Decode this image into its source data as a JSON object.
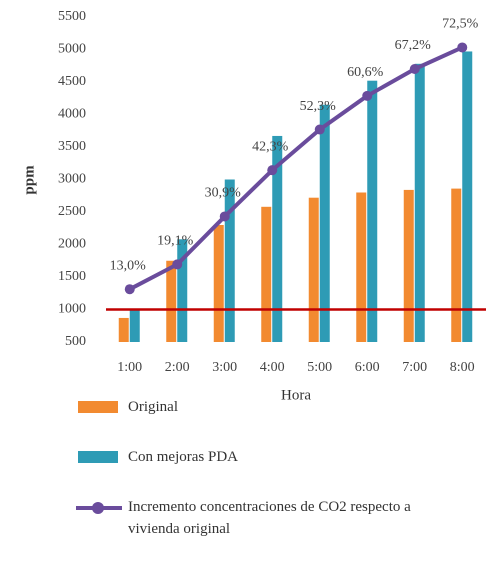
{
  "chart_data": {
    "type": "bar_line",
    "categories": [
      "1:00",
      "2:00",
      "3:00",
      "4:00",
      "5:00",
      "6:00",
      "7:00",
      "8:00"
    ],
    "xlabel": "Hora",
    "ylabel": "ppm",
    "ylim": [
      500,
      5500
    ],
    "yticks": [
      500,
      1000,
      1500,
      2000,
      2500,
      3000,
      3500,
      4000,
      4500,
      5000,
      5500
    ],
    "y2lim": [
      0,
      80
    ],
    "reference_line": {
      "value": 1000,
      "color": "#c00000"
    },
    "series": [
      {
        "name": "Original",
        "type": "bar",
        "color": "#f28a30",
        "values": [
          870,
          1750,
          2300,
          2580,
          2720,
          2800,
          2840,
          2860
        ]
      },
      {
        "name": "Con mejoras PDA",
        "type": "bar",
        "color": "#2e9bb5",
        "values": [
          1000,
          2080,
          3000,
          3670,
          4150,
          4520,
          4780,
          4970
        ]
      },
      {
        "name": "Incremento concentraciones de CO2 respecto a vivienda original",
        "type": "line",
        "axis": "y2",
        "color": "#6a4c9c",
        "values": [
          13.0,
          19.1,
          30.9,
          42.3,
          52.3,
          60.6,
          67.2,
          72.5
        ],
        "value_labels": [
          "13,0%",
          "19,1%",
          "30,9%",
          "42,3%",
          "52,3%",
          "60,6%",
          "67,2%",
          "72,5%"
        ]
      }
    ]
  }
}
